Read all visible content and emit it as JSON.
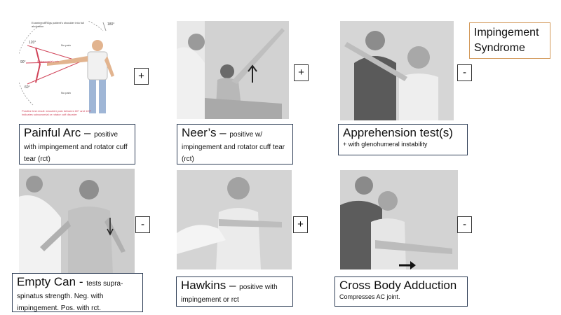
{
  "title": "Impingement Syndrome",
  "tests": [
    {
      "name": "Painful Arc",
      "dash": " – ",
      "desc": "positive with impingement  and rotator cuff tear (rct)",
      "sign": "+",
      "figure": {
        "top_note": "Examiner brings patient's shoulder into full abduction",
        "deg_180": "180°",
        "deg_120": "120°",
        "deg_90": "90°",
        "deg_60": "60°",
        "no_pain_1": "No pain",
        "no_pain_2": "No pain",
        "subacromial_pain": "Subacromial pain",
        "footnote": "Positive test result: shoulder pain between 60° and 120° indicates subacromial or rotator cuff disorder"
      }
    },
    {
      "name": "Neer’s",
      "dash": " – ",
      "desc": "positive w/ impingement and rotator cuff tear (rct)",
      "sign": "+"
    },
    {
      "name": "Apprehension test(s)",
      "desc": "+ with glenohumeral  instability",
      "sign": "-"
    },
    {
      "name": "Empty Can",
      "dash": " - ",
      "desc": "tests supra-spinatus strength. Neg. with impingement. Pos. with rct.",
      "sign": "-"
    },
    {
      "name": "Hawkins",
      "dash": " – ",
      "desc": "positive with impingement or  rct",
      "sign": "+"
    },
    {
      "name": "Cross Body Adduction",
      "desc": "Compresses AC joint.",
      "sign": "-"
    }
  ],
  "colors": {
    "caption_border": "#2f3f57",
    "title_border": "#d39a5b",
    "photo_gray": "#d8d8d8",
    "diagram_red": "#d1455a"
  }
}
